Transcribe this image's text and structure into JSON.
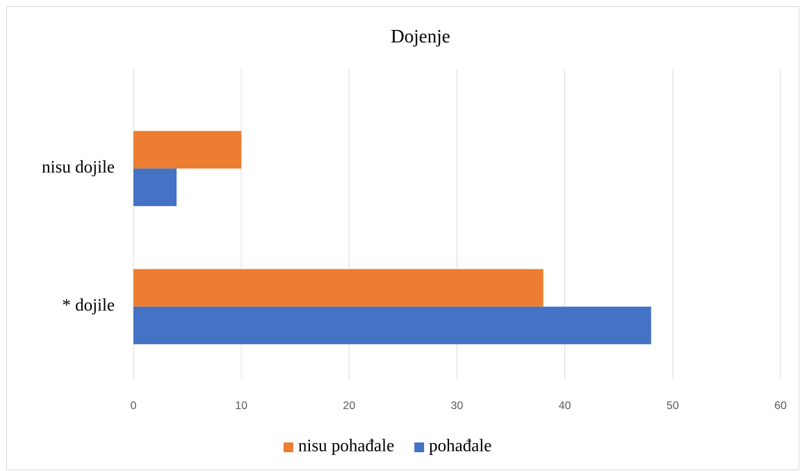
{
  "chart_data": {
    "type": "barh",
    "title": "Dojenje",
    "categories": [
      "nisu dojile",
      "* dojile"
    ],
    "series": [
      {
        "name": "nisu pohađale",
        "color": "#ed7d31",
        "values": [
          10,
          38
        ]
      },
      {
        "name": "pohađale",
        "color": "#4472c4",
        "values": [
          4,
          48
        ]
      }
    ],
    "xlim": [
      0,
      60
    ],
    "xticks": [
      0,
      10,
      20,
      30,
      40,
      50,
      60
    ],
    "grid": true,
    "legend": "bottom"
  }
}
